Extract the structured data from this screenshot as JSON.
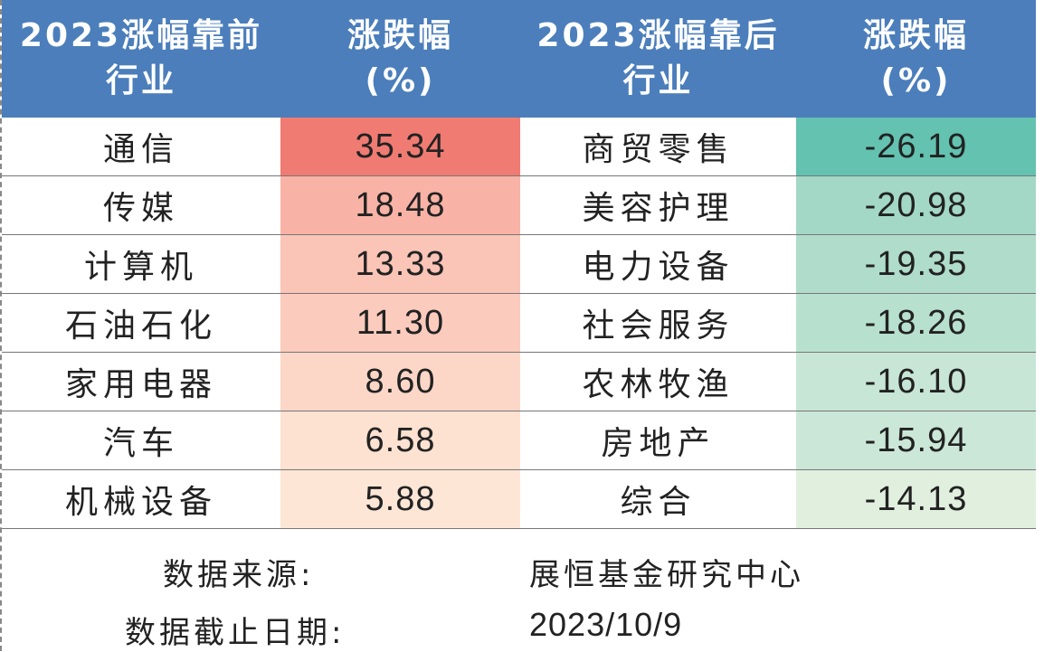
{
  "headers": {
    "top_industry": [
      "2023涨幅靠前",
      "行业"
    ],
    "top_change": [
      "涨跌幅",
      "(%)"
    ],
    "bottom_industry": [
      "2023涨幅靠后",
      "行业"
    ],
    "bottom_change": [
      "涨跌幅",
      "(%)"
    ]
  },
  "rows": [
    {
      "top": "通信",
      "top_val": "35.34",
      "top_color": "#f07b72",
      "bottom": "商贸零售",
      "bottom_val": "-26.19",
      "bottom_color": "#63c2b0"
    },
    {
      "top": "传媒",
      "top_val": "18.48",
      "top_color": "#f8b3a6",
      "bottom": "美容护理",
      "bottom_val": "-20.98",
      "bottom_color": "#a3d8c6"
    },
    {
      "top": "计算机",
      "top_val": "13.33",
      "top_color": "#fac4b7",
      "bottom": "电力设备",
      "bottom_val": "-19.35",
      "bottom_color": "#afdccb"
    },
    {
      "top": "石油石化",
      "top_val": "11.30",
      "top_color": "#fbcbbd",
      "bottom": "社会服务",
      "bottom_val": "-18.26",
      "bottom_color": "#b8e0cf"
    },
    {
      "top": "家用电器",
      "top_val": "8.60",
      "top_color": "#fcd7c7",
      "bottom": "农林牧渔",
      "bottom_val": "-16.10",
      "bottom_color": "#c7e6d6"
    },
    {
      "top": "汽车",
      "top_val": "6.58",
      "top_color": "#fde1d1",
      "bottom": "房地产",
      "bottom_val": "-15.94",
      "bottom_color": "#cbe7d8"
    },
    {
      "top": "机械设备",
      "top_val": "5.88",
      "top_color": "#fde6d6",
      "bottom": "综合",
      "bottom_val": "-14.13",
      "bottom_color": "#e1efdf"
    }
  ],
  "footer": {
    "source_label": "数据来源:",
    "source_value": "展恒基金研究中心",
    "date_label": "数据截止日期:",
    "date_value": "2023/10/9"
  },
  "colors": {
    "header_bg": "#4b7ebb"
  }
}
